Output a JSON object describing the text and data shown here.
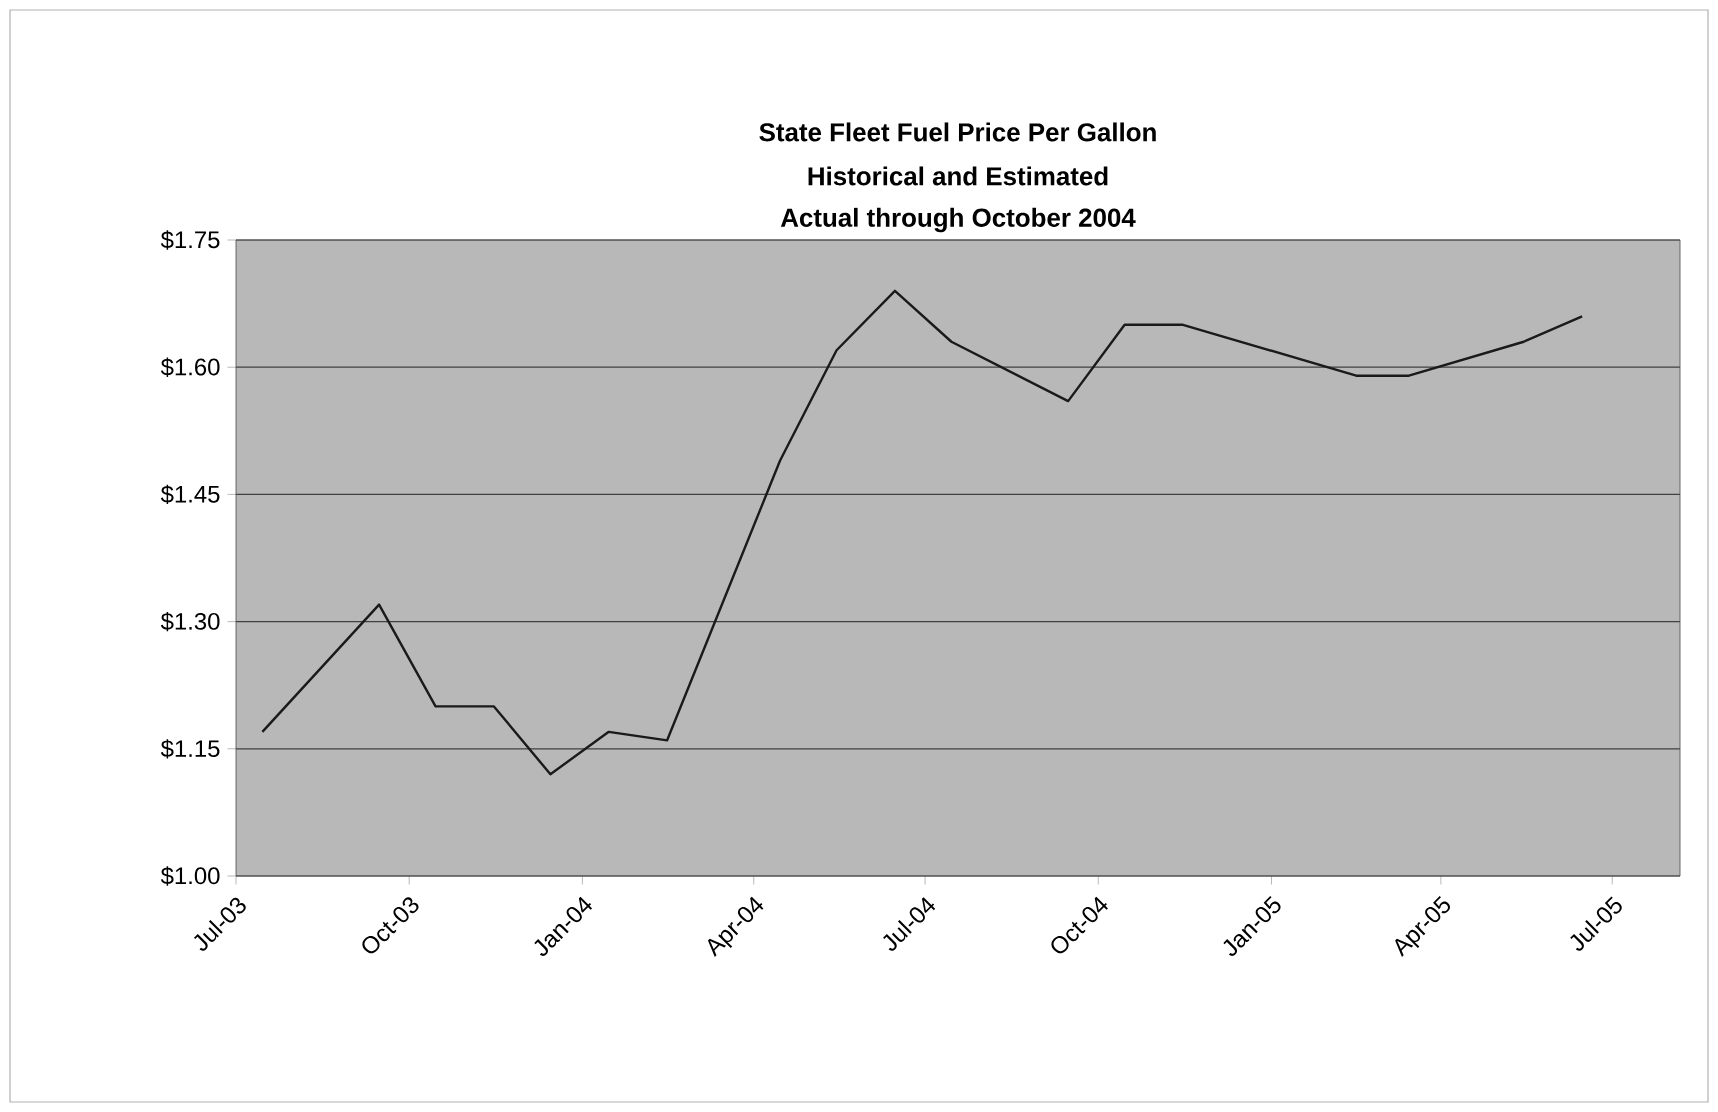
{
  "chart_data": {
    "type": "line",
    "title": "State Fleet Fuel Price Per Gallon",
    "subtitle": "Historical and Estimated",
    "annotations": [
      "Actual through October 2004"
    ],
    "x": [
      "2003-07-15",
      "2003-09-15",
      "2003-10-15",
      "2003-11-15",
      "2003-12-15",
      "2004-01-15",
      "2004-02-15",
      "2004-04-15",
      "2004-05-15",
      "2004-06-15",
      "2004-07-15",
      "2004-09-15",
      "2004-10-15",
      "2004-11-15",
      "2005-02-15",
      "2005-03-15",
      "2005-05-15",
      "2005-06-15"
    ],
    "series": [
      {
        "color": "#1a1a1a",
        "values": [
          1.17,
          1.32,
          1.2,
          1.2,
          1.12,
          1.17,
          1.16,
          1.49,
          1.62,
          1.69,
          1.63,
          1.56,
          1.65,
          1.65,
          1.59,
          1.59,
          1.63,
          1.66
        ]
      }
    ],
    "xlim": [
      "2003-07-01",
      "2005-08-06"
    ],
    "xticks": [
      {
        "value": "2003-07-01",
        "label": "Jul-03"
      },
      {
        "value": "2003-10-01",
        "label": "Oct-03"
      },
      {
        "value": "2004-01-01",
        "label": "Jan-04"
      },
      {
        "value": "2004-04-01",
        "label": "Apr-04"
      },
      {
        "value": "2004-07-01",
        "label": "Jul-04"
      },
      {
        "value": "2004-10-01",
        "label": "Oct-04"
      },
      {
        "value": "2005-01-01",
        "label": "Jan-05"
      },
      {
        "value": "2005-04-01",
        "label": "Apr-05"
      },
      {
        "value": "2005-07-01",
        "label": "Jul-05"
      }
    ],
    "ylim": [
      1.0,
      1.75
    ],
    "yticks": [
      {
        "value": 1.0,
        "label": "$1.00"
      },
      {
        "value": 1.15,
        "label": "$1.15"
      },
      {
        "value": 1.3,
        "label": "$1.30"
      },
      {
        "value": 1.45,
        "label": "$1.45"
      },
      {
        "value": 1.6,
        "label": "$1.60"
      },
      {
        "value": 1.75,
        "label": "$1.75"
      }
    ],
    "grid": "y",
    "marker": "none",
    "line_style": "solid"
  }
}
